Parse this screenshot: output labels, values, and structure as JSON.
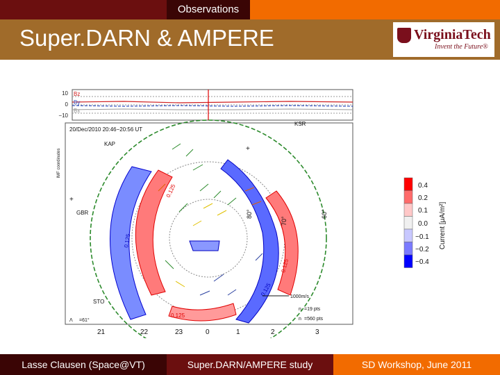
{
  "header": {
    "section": "Observations",
    "title": "Super.DARN & AMPERE"
  },
  "logo": {
    "name": "VirginiaTech",
    "tagline": "Invent the Future®"
  },
  "figure": {
    "imf_labels": [
      "Bz",
      "By",
      "Bx"
    ],
    "imf_ticks": [
      "10",
      "0",
      "−10"
    ],
    "y_axis": "IMF coordinates",
    "timestamp": "20/Dec/2010 20:46−20:56 UT",
    "stations": [
      "KAP",
      "KSR",
      "GBR",
      "STO"
    ],
    "contour_labels": [
      "0.125",
      "0.125",
      "0.125",
      "0.125",
      "0.125"
    ],
    "lat_labels": [
      "80°",
      "70°",
      "60°"
    ],
    "mlt_labels": [
      "21",
      "22",
      "23",
      "0",
      "1",
      "2",
      "3"
    ],
    "scale_vector": "1000m/s",
    "npts": "n",
    "pts1": "=19 pts",
    "pts2": "=560 pts",
    "lambda_hm": "Λ",
    "lambda_value": "=61°"
  },
  "colorbar": {
    "ticks": [
      "0.4",
      "0.2",
      "0.1",
      "0.0",
      "−0.1",
      "−0.2",
      "−0.4"
    ],
    "label": "Current [μA/m²]",
    "colors": [
      "#ff0000",
      "#ff6b6b",
      "#ffc8c8",
      "#f0f0f0",
      "#c8c8ff",
      "#7a7aff",
      "#0000ff"
    ]
  },
  "footer": {
    "author": "Lasse Clausen (Space@VT)",
    "topic": "Super.DARN/AMPERE study",
    "event": "SD Workshop, June 2011"
  }
}
